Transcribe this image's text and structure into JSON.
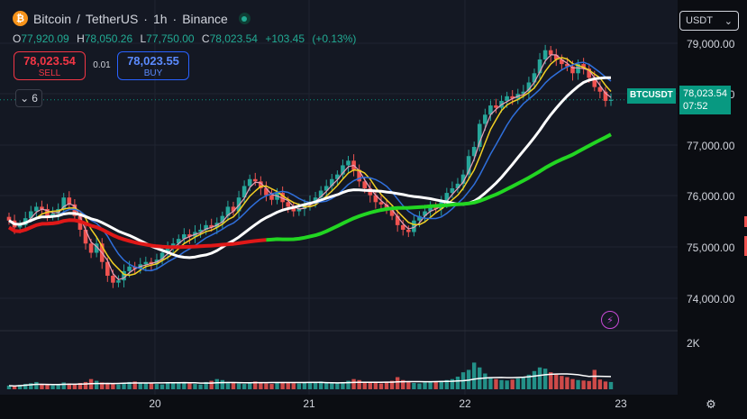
{
  "symbol": {
    "base_name": "Bitcoin",
    "quote_name": "TetherUS",
    "interval": "1h",
    "exchange": "Binance",
    "logo_glyph": "₿",
    "separator_1": "/",
    "separator_2": "·"
  },
  "ohlc": {
    "open_label": "O",
    "open": "77,920.09",
    "high_label": "H",
    "high": "78,050.26",
    "low_label": "L",
    "low": "77,750.00",
    "close_label": "C",
    "close": "78,023.54",
    "change": "+103.45",
    "change_pct": "(+0.13%)"
  },
  "trade": {
    "sell_price": "78,023.54",
    "sell_label": "SELL",
    "spread": "0.01",
    "buy_price": "78,023.55",
    "buy_label": "BUY"
  },
  "indicator_toggle": {
    "glyph": "⌄",
    "count": "6"
  },
  "currency_select": {
    "value": "USDT",
    "chevron": "⌄"
  },
  "price_axis": {
    "labels": [
      "79,000.00",
      "78,000.00",
      "77,000.00",
      "76,000.00",
      "75,000.00",
      "74,000.00"
    ],
    "volume_label": "2K"
  },
  "current_price": {
    "symbol": "BTCUSDT",
    "price": "78,023.54",
    "countdown": "07:52"
  },
  "time_axis": {
    "labels": [
      "20",
      "21",
      "22",
      "23"
    ]
  },
  "icons": {
    "bolt": "⚡",
    "settings": "⚙"
  },
  "colors": {
    "up": "#26a69a",
    "down": "#ef5350",
    "ma_blue": "#2f6fdb",
    "ma_yellow": "#f2d024",
    "ma_pink": "#e8a0b8",
    "ma_white": "#ffffff",
    "ma_green": "#22d622",
    "ma_red": "#e01818",
    "price_tag": "#089981"
  },
  "chart_data": {
    "type": "candlestick",
    "timeframe": "1h",
    "last": {
      "open": 77920.09,
      "high": 78050.26,
      "low": 77750.0,
      "close": 78023.54
    },
    "y_range": [
      73300,
      79800
    ],
    "closes": [
      75400,
      75250,
      75300,
      75450,
      75600,
      75700,
      75650,
      75500,
      75550,
      75650,
      75900,
      75750,
      75500,
      75200,
      74900,
      74700,
      74900,
      74500,
      74200,
      74050,
      74100,
      74300,
      74400,
      74350,
      74450,
      74500,
      74450,
      74550,
      74700,
      74800,
      74900,
      75000,
      75100,
      75050,
      75150,
      75200,
      75300,
      75250,
      75350,
      75500,
      75700,
      75600,
      75900,
      76150,
      76300,
      76250,
      76100,
      75950,
      75850,
      76000,
      75800,
      75700,
      75600,
      75650,
      75750,
      75800,
      75900,
      76050,
      76150,
      76300,
      76400,
      76600,
      76700,
      76500,
      76250,
      76100,
      75950,
      75800,
      75750,
      75650,
      75500,
      75300,
      75200,
      75150,
      75400,
      75500,
      75600,
      75700,
      75650,
      75800,
      76000,
      76100,
      76200,
      76400,
      76800,
      77000,
      77500,
      77700,
      77900,
      77850,
      78000,
      78100,
      78050,
      78150,
      78200,
      78400,
      78600,
      78900,
      79100,
      79000,
      78900,
      78800,
      78750,
      78600,
      78800,
      78700,
      78500,
      78300,
      78200,
      78000,
      78023.54
    ],
    "volume_range": [
      0,
      2600
    ],
    "volumes": [
      150,
      120,
      180,
      220,
      250,
      300,
      200,
      180,
      160,
      220,
      280,
      240,
      200,
      260,
      300,
      420,
      350,
      280,
      250,
      230,
      200,
      260,
      300,
      320,
      280,
      260,
      240,
      220,
      200,
      250,
      280,
      300,
      260,
      240,
      220,
      200,
      300,
      350,
      420,
      380,
      300,
      260,
      240,
      220,
      280,
      320,
      260,
      240,
      220,
      260,
      300,
      280,
      250,
      240,
      260,
      280,
      300,
      320,
      260,
      240,
      280,
      300,
      350,
      420,
      380,
      300,
      280,
      260,
      240,
      300,
      350,
      500,
      380,
      320,
      260,
      240,
      280,
      300,
      320,
      350,
      380,
      420,
      520,
      700,
      800,
      1100,
      900,
      650,
      500,
      420,
      380,
      360,
      400,
      450,
      520,
      600,
      750,
      900,
      850,
      700,
      600,
      550,
      500,
      420,
      380,
      360,
      340,
      800,
      400,
      320,
      300
    ]
  }
}
